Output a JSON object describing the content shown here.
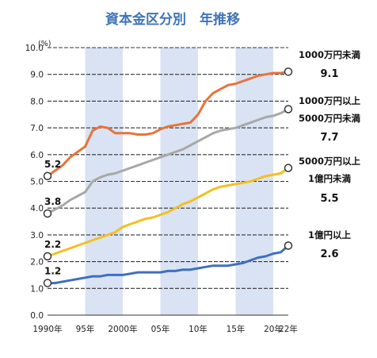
{
  "chart_data": {
    "type": "line",
    "title": "資本金区分別　年推移",
    "ylabel": "(%)",
    "ylim": [
      0.0,
      10.0
    ],
    "yticks": [
      "0.0",
      "1.0",
      "2.0",
      "3.0",
      "4.0",
      "5.0",
      "6.0",
      "7.0",
      "8.0",
      "9.0",
      "10.0"
    ],
    "xlim": [
      1990,
      2022
    ],
    "xticks": [
      {
        "x": 1990,
        "label": "1990年"
      },
      {
        "x": 1995,
        "label": "95年"
      },
      {
        "x": 2000,
        "label": "2000年"
      },
      {
        "x": 2005,
        "label": "05年"
      },
      {
        "x": 2010,
        "label": "10年"
      },
      {
        "x": 2015,
        "label": "15年"
      },
      {
        "x": 2020,
        "label": "20年"
      },
      {
        "x": 2022,
        "label": "22年"
      }
    ],
    "shaded_periods": [
      [
        1995,
        2000
      ],
      [
        2005,
        2010
      ],
      [
        2015,
        2020
      ]
    ],
    "x": [
      1990,
      1991,
      1992,
      1993,
      1994,
      1995,
      1996,
      1997,
      1998,
      1999,
      2000,
      2001,
      2002,
      2003,
      2004,
      2005,
      2006,
      2007,
      2008,
      2009,
      2010,
      2011,
      2012,
      2013,
      2014,
      2015,
      2016,
      2017,
      2018,
      2019,
      2020,
      2021,
      2022
    ],
    "series": [
      {
        "color": "#e8733a",
        "values": [
          5.2,
          5.4,
          5.6,
          5.9,
          6.1,
          6.3,
          6.9,
          7.05,
          7.0,
          6.8,
          6.8,
          6.8,
          6.75,
          6.75,
          6.8,
          6.95,
          7.05,
          7.1,
          7.15,
          7.2,
          7.5,
          8.0,
          8.3,
          8.45,
          8.6,
          8.65,
          8.75,
          8.85,
          8.95,
          9.0,
          9.05,
          9.05,
          9.1
        ],
        "start_label": "5.2",
        "end_label": [
          "1000万円未満"
        ],
        "end_value": "9.1"
      },
      {
        "color": "#a8a8a8",
        "values": [
          3.8,
          3.95,
          4.1,
          4.3,
          4.45,
          4.6,
          5.0,
          5.15,
          5.25,
          5.3,
          5.4,
          5.5,
          5.6,
          5.7,
          5.8,
          5.9,
          6.0,
          6.1,
          6.2,
          6.35,
          6.5,
          6.65,
          6.8,
          6.9,
          6.95,
          7.0,
          7.1,
          7.2,
          7.3,
          7.4,
          7.45,
          7.55,
          7.7
        ],
        "start_label": "3.8",
        "end_label": [
          "1000万円以上",
          "5000万円未満"
        ],
        "end_value": "7.7"
      },
      {
        "color": "#f2c020",
        "values": [
          2.2,
          2.3,
          2.4,
          2.5,
          2.6,
          2.7,
          2.8,
          2.9,
          3.0,
          3.1,
          3.3,
          3.4,
          3.5,
          3.6,
          3.65,
          3.75,
          3.85,
          4.0,
          4.15,
          4.25,
          4.4,
          4.55,
          4.7,
          4.8,
          4.85,
          4.9,
          4.95,
          5.0,
          5.1,
          5.2,
          5.25,
          5.3,
          5.5
        ],
        "start_label": "2.2",
        "end_label": [
          "5000万円以上",
          "1億円未満"
        ],
        "end_value": "5.5"
      },
      {
        "color": "#3f6fc0",
        "values": [
          1.2,
          1.2,
          1.25,
          1.3,
          1.35,
          1.4,
          1.45,
          1.45,
          1.5,
          1.5,
          1.5,
          1.55,
          1.6,
          1.6,
          1.6,
          1.6,
          1.65,
          1.65,
          1.7,
          1.7,
          1.75,
          1.8,
          1.85,
          1.85,
          1.85,
          1.9,
          1.95,
          2.05,
          2.15,
          2.2,
          2.3,
          2.35,
          2.6
        ],
        "start_label": "1.2",
        "end_label": [
          "1億円以上"
        ],
        "end_value": "2.6"
      }
    ]
  }
}
